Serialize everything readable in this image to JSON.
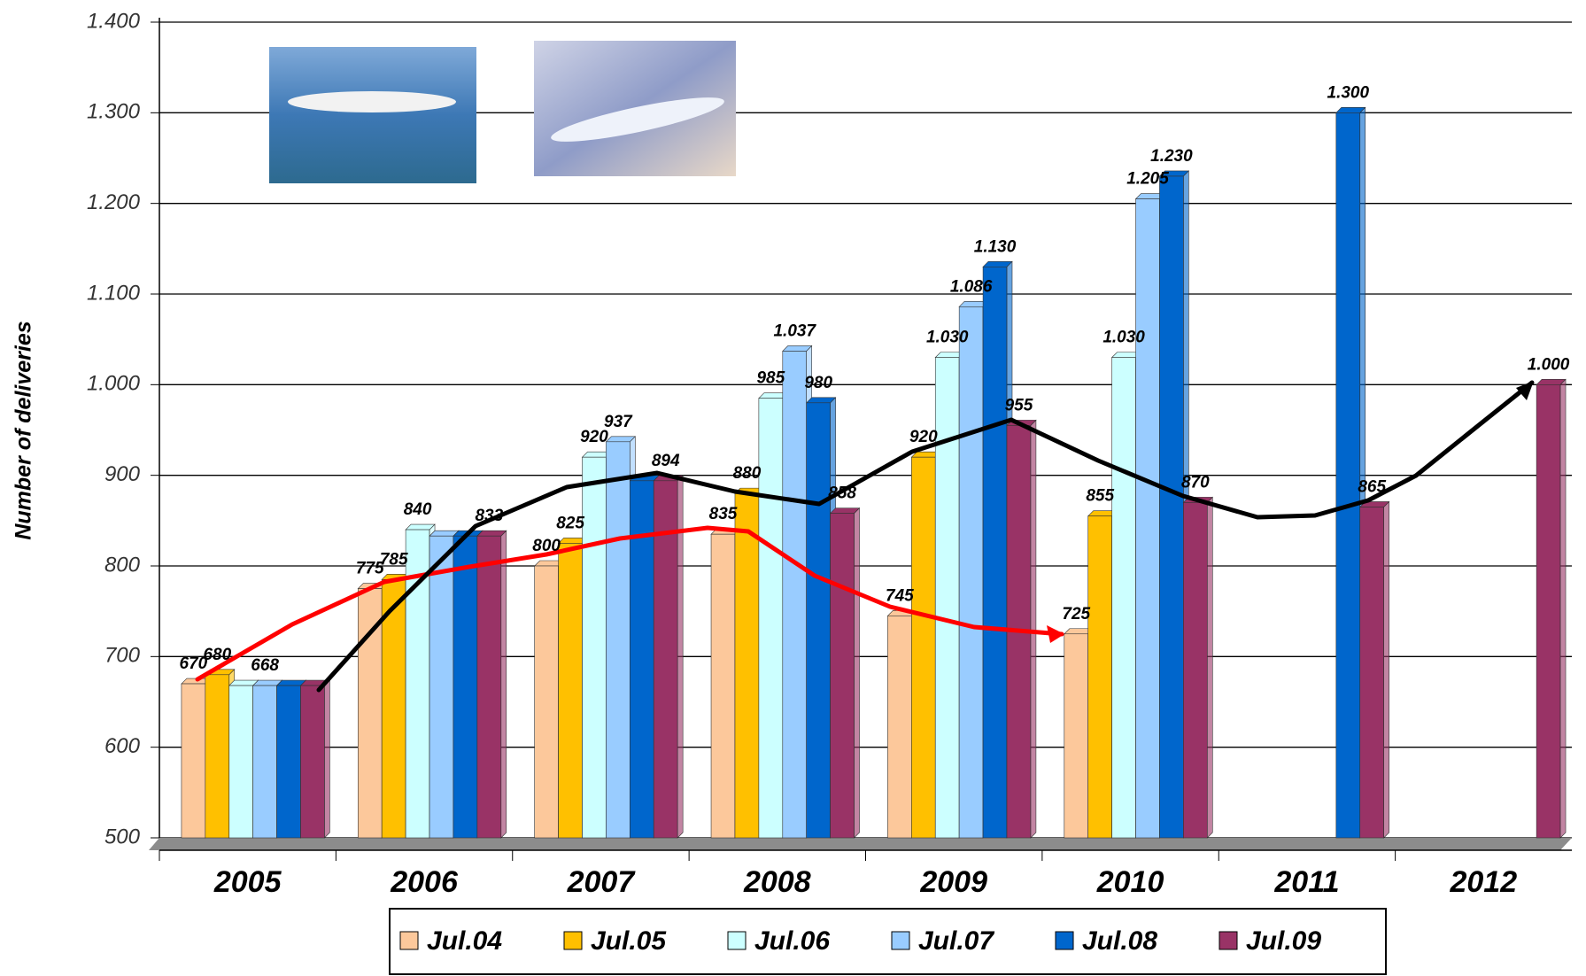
{
  "chart_data": {
    "type": "bar",
    "y_label": "Number of deliveries",
    "categories": [
      "2005",
      "2006",
      "2007",
      "2008",
      "2009",
      "2010",
      "2011",
      "2012"
    ],
    "series": [
      {
        "name": "Jul.04",
        "color": "#fcc89b",
        "values": [
          670,
          775,
          800,
          835,
          745,
          725,
          null,
          null
        ],
        "value_labels": [
          "670",
          "775",
          "800",
          "835",
          "745",
          "725",
          null,
          null
        ]
      },
      {
        "name": "Jul.05",
        "color": "#ffc000",
        "values": [
          680,
          785,
          825,
          880,
          920,
          855,
          null,
          null
        ],
        "value_labels": [
          "680",
          "785",
          "825",
          "880",
          "920",
          "855",
          null,
          null
        ]
      },
      {
        "name": "Jul.06",
        "color": "#ccffff",
        "values": [
          668,
          840,
          920,
          985,
          1030,
          1030,
          null,
          null
        ],
        "value_labels": [
          null,
          "840",
          "920",
          "985",
          "1.030",
          "1.030",
          null,
          null
        ]
      },
      {
        "name": "Jul.07",
        "color": "#99ccff",
        "values": [
          668,
          833,
          937,
          1037,
          1086,
          1205,
          null,
          null
        ],
        "value_labels": [
          "668",
          null,
          "937",
          "1.037",
          "1.086",
          "1.205",
          null,
          null
        ]
      },
      {
        "name": "Jul.08",
        "color": "#0066cc",
        "values": [
          668,
          833,
          894,
          980,
          1130,
          1230,
          1300,
          null
        ],
        "value_labels": [
          null,
          null,
          null,
          "980",
          "1.130",
          "1.230",
          "1.300",
          null
        ]
      },
      {
        "name": "Jul.09",
        "color": "#993366",
        "values": [
          668,
          833,
          894,
          858,
          955,
          870,
          865,
          1000
        ],
        "value_labels": [
          null,
          "833",
          "894",
          "858",
          "955",
          "870",
          "865",
          "1.000"
        ]
      }
    ],
    "ylim": [
      500,
      1400
    ],
    "yticks": [
      500,
      600,
      700,
      800,
      900,
      {
        "value": 1000,
        "label": "1.000"
      },
      {
        "value": 1100,
        "label": "1.100"
      },
      {
        "value": 1200,
        "label": "1.200"
      },
      {
        "value": 1300,
        "label": "1.300"
      },
      {
        "value": 1400,
        "label": "1.400"
      }
    ],
    "grid": true,
    "legend": "bottom"
  }
}
